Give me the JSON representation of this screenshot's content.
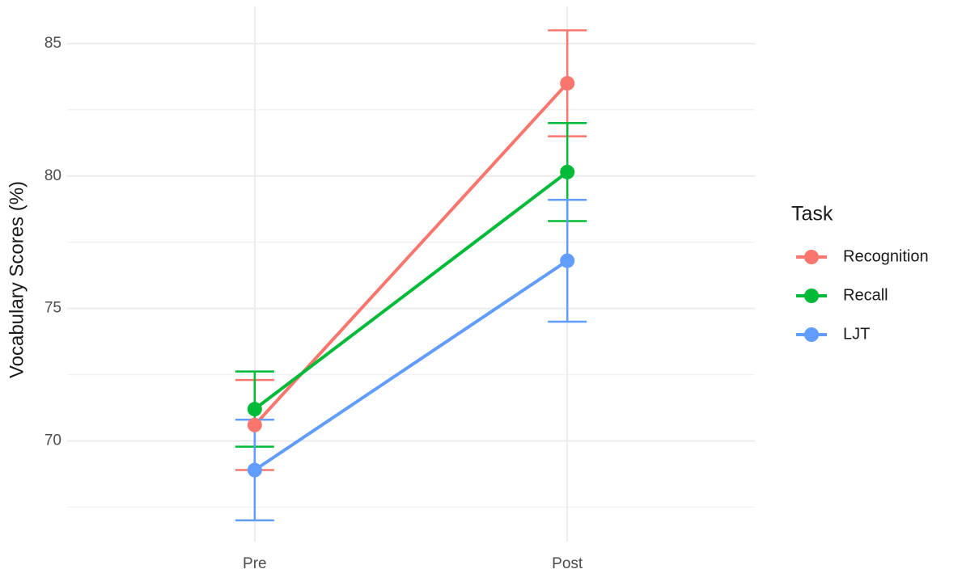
{
  "chart_data": {
    "type": "line",
    "y_label": "Vocabulary Scores (%)",
    "legend_title": "Task",
    "legend_position": "right",
    "categories": [
      "Pre",
      "Post"
    ],
    "series": [
      {
        "name": "Recognition",
        "color": "#F8766D",
        "values": [
          70.6,
          83.5
        ],
        "errors": [
          1.7,
          2.0
        ]
      },
      {
        "name": "Recall",
        "color": "#00BA38",
        "values": [
          71.2,
          80.15
        ],
        "errors": [
          1.42,
          1.85
        ]
      },
      {
        "name": "LJT",
        "color": "#619CFF",
        "values": [
          68.9,
          76.8
        ],
        "errors": [
          1.9,
          2.3
        ]
      }
    ],
    "ylim": [
      66.2,
      86.4
    ],
    "yticks": [
      70,
      75,
      80,
      85
    ],
    "y_minor_grid": [
      67.5,
      72.5,
      77.5,
      82.5
    ],
    "grid": true
  }
}
